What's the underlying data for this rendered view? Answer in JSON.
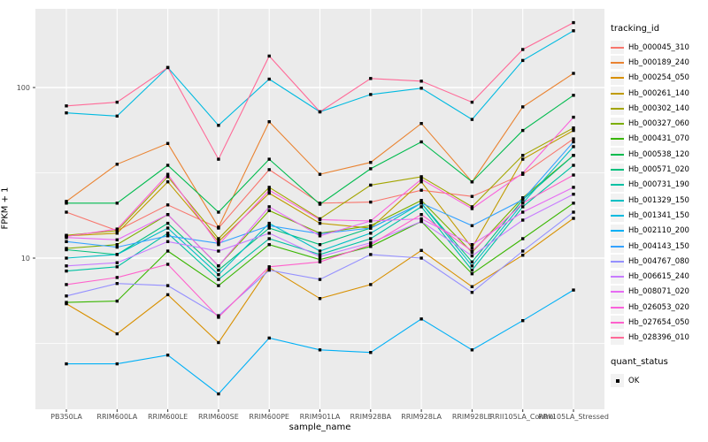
{
  "chart_data": {
    "type": "line",
    "title": "",
    "xlabel": "sample_name",
    "ylabel": "FPKM + 1",
    "y_scale": "log10",
    "ylim": [
      1.4,
      300
    ],
    "y_major_ticks": [
      10,
      100
    ],
    "y_minor_gridlines": [
      3.162,
      31.623
    ],
    "grid": true,
    "legend_position": "right",
    "point_marker": "filled-square-black",
    "categories": [
      "PB350LA",
      "RRIM600LA",
      "RRIM600LE",
      "RRIM600SE",
      "RRIM600PE",
      "RRIM901LA",
      "RRIM928BA",
      "RRIM928LA",
      "RRIM928LE",
      "RRII105LA_Control",
      "RRII105LA_Stressed"
    ],
    "series": [
      {
        "name": "Hb_000045_310",
        "color": "#F8766D",
        "values": [
          18.6,
          14.5,
          20.5,
          15.0,
          33.0,
          21.0,
          21.3,
          25.0,
          23.0,
          31.0,
          50.0
        ]
      },
      {
        "name": "Hb_000189_240",
        "color": "#EA8331",
        "values": [
          21.5,
          35.5,
          47.0,
          15.2,
          63.0,
          31.0,
          36.4,
          61.5,
          28.0,
          77.0,
          121.0
        ]
      },
      {
        "name": "Hb_000254_050",
        "color": "#D89000",
        "values": [
          5.4,
          3.6,
          6.1,
          3.2,
          8.8,
          5.8,
          7.0,
          11.1,
          6.8,
          10.4,
          17.1
        ]
      },
      {
        "name": "Hb_000261_140",
        "color": "#C09B00",
        "values": [
          13.5,
          14.0,
          28.0,
          12.5,
          24.0,
          16.0,
          15.0,
          28.0,
          11.5,
          38.0,
          56.0
        ]
      },
      {
        "name": "Hb_000302_140",
        "color": "#A3A500",
        "values": [
          13.6,
          14.5,
          30.0,
          13.0,
          26.0,
          17.0,
          26.8,
          30.0,
          20.0,
          40.0,
          58.0
        ]
      },
      {
        "name": "Hb_000327_060",
        "color": "#7CAE00",
        "values": [
          11.4,
          12.0,
          18.0,
          9.0,
          19.0,
          14.0,
          15.5,
          21.8,
          10.8,
          22.6,
          40.0
        ]
      },
      {
        "name": "Hb_000431_070",
        "color": "#39B600",
        "values": [
          5.5,
          5.6,
          11.0,
          6.9,
          12.0,
          9.8,
          11.7,
          16.4,
          8.1,
          13.0,
          21.0
        ]
      },
      {
        "name": "Hb_000538_120",
        "color": "#00BB4E",
        "values": [
          21.0,
          21.0,
          35.0,
          18.6,
          38.0,
          20.7,
          33.4,
          48.0,
          28.0,
          56.0,
          90.0
        ]
      },
      {
        "name": "Hb_000571_020",
        "color": "#00BF7D",
        "values": [
          11.2,
          10.5,
          16.0,
          8.5,
          15.0,
          12.0,
          15.0,
          21.0,
          9.5,
          22.0,
          40.0
        ]
      },
      {
        "name": "Hb_000731_190",
        "color": "#00C1A3",
        "values": [
          8.4,
          8.9,
          14.0,
          7.5,
          13.0,
          10.5,
          13.0,
          20.0,
          8.5,
          20.0,
          35.0
        ]
      },
      {
        "name": "Hb_001329_150",
        "color": "#00BFC4",
        "values": [
          10.0,
          10.5,
          15.0,
          8.0,
          16.0,
          11.0,
          14.0,
          21.0,
          9.0,
          21.0,
          45.0
        ]
      },
      {
        "name": "Hb_001341_150",
        "color": "#00BAE0",
        "values": [
          71.0,
          68.0,
          131.0,
          60.0,
          112.0,
          72.0,
          91.0,
          99.0,
          65.0,
          144.0,
          215.0
        ]
      },
      {
        "name": "Hb_002110_200",
        "color": "#00B0F6",
        "values": [
          2.4,
          2.4,
          2.7,
          1.6,
          3.4,
          2.9,
          2.8,
          4.4,
          2.9,
          4.3,
          6.5
        ]
      },
      {
        "name": "Hb_004143_150",
        "color": "#35A2FF",
        "values": [
          12.5,
          11.6,
          13.5,
          12.2,
          15.5,
          13.9,
          15.0,
          21.0,
          15.5,
          22.0,
          48.0
        ]
      },
      {
        "name": "Hb_004767_080",
        "color": "#9590FF",
        "values": [
          6.0,
          7.1,
          6.9,
          4.6,
          8.5,
          7.5,
          10.5,
          10.0,
          6.3,
          11.0,
          18.6
        ]
      },
      {
        "name": "Hb_006615_240",
        "color": "#C77CFF",
        "values": [
          9.0,
          9.4,
          12.5,
          11.0,
          14.0,
          10.2,
          12.3,
          16.4,
          10.3,
          16.7,
          23.7
        ]
      },
      {
        "name": "Hb_008071_020",
        "color": "#E76BF3",
        "values": [
          13.2,
          12.8,
          18.0,
          9.0,
          20.0,
          13.5,
          16.5,
          17.0,
          12.0,
          18.6,
          26.0
        ]
      },
      {
        "name": "Hb_026053_020",
        "color": "#FA62DB",
        "values": [
          13.4,
          14.8,
          31.0,
          12.0,
          25.0,
          16.8,
          16.5,
          29.0,
          19.5,
          31.5,
          67.0
        ]
      },
      {
        "name": "Hb_027654_050",
        "color": "#FF61CC",
        "values": [
          7.0,
          7.7,
          9.2,
          4.5,
          8.9,
          9.5,
          12.0,
          18.0,
          11.0,
          21.0,
          30.7
        ]
      },
      {
        "name": "Hb_028396_010",
        "color": "#FF6A98",
        "values": [
          78.0,
          82.0,
          131.0,
          38.0,
          153.0,
          72.0,
          113.0,
          109.0,
          82.0,
          167.0,
          240.0
        ]
      }
    ],
    "legend": {
      "tracking_title": "tracking_id",
      "quant_title": "quant_status",
      "quant_items": [
        "OK"
      ]
    }
  },
  "colors": {
    "panel_bg": "#EBEBEB",
    "grid_major": "#FFFFFF",
    "grid_minor": "#FFFFFF",
    "axis_text": "#4D4D4D",
    "tick": "#333333",
    "text": "#000000",
    "legend_key_bg": "#F2F2F2",
    "point": "#000000"
  }
}
